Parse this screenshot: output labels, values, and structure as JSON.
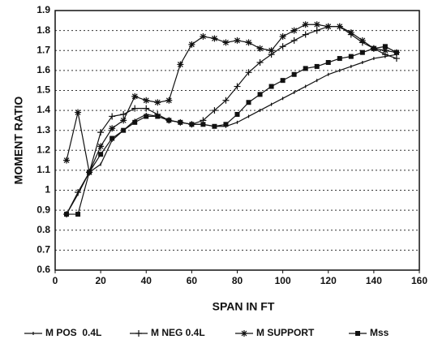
{
  "chart_data": {
    "type": "line",
    "xlabel": "SPAN IN FT",
    "ylabel": "MOMENT RATIO",
    "x": [
      5,
      10,
      15,
      20,
      25,
      30,
      35,
      40,
      45,
      50,
      55,
      60,
      65,
      70,
      75,
      80,
      85,
      90,
      95,
      100,
      105,
      110,
      115,
      120,
      125,
      130,
      135,
      140,
      145,
      150
    ],
    "series": [
      {
        "name": "M POS  0.4L",
        "color": "#111111",
        "marker": "tick",
        "values": [
          0.88,
          0.98,
          1.09,
          1.13,
          1.25,
          1.3,
          1.35,
          1.38,
          1.37,
          1.35,
          1.34,
          1.33,
          1.33,
          1.32,
          1.32,
          1.34,
          1.37,
          1.4,
          1.43,
          1.46,
          1.49,
          1.52,
          1.55,
          1.58,
          1.6,
          1.62,
          1.64,
          1.66,
          1.67,
          1.68
        ]
      },
      {
        "name": "M NEG 0.4L",
        "color": "#111111",
        "marker": "plus",
        "values": [
          0.88,
          0.99,
          1.09,
          1.29,
          1.37,
          1.38,
          1.41,
          1.41,
          1.38,
          1.35,
          1.34,
          1.33,
          1.35,
          1.4,
          1.45,
          1.52,
          1.59,
          1.64,
          1.68,
          1.72,
          1.75,
          1.78,
          1.8,
          1.82,
          1.82,
          1.78,
          1.74,
          1.71,
          1.68,
          1.66
        ]
      },
      {
        "name": "M SUPPORT",
        "color": "#111111",
        "marker": "star",
        "values": [
          1.15,
          1.39,
          1.09,
          1.22,
          1.31,
          1.35,
          1.47,
          1.45,
          1.44,
          1.45,
          1.63,
          1.73,
          1.77,
          1.76,
          1.74,
          1.75,
          1.74,
          1.71,
          1.7,
          1.77,
          1.8,
          1.83,
          1.83,
          1.82,
          1.82,
          1.79,
          1.75,
          1.71,
          1.7,
          1.69
        ]
      },
      {
        "name": "Mss",
        "color": "#111111",
        "marker": "square",
        "values": [
          0.88,
          0.88,
          1.09,
          1.18,
          1.26,
          1.3,
          1.34,
          1.37,
          1.37,
          1.35,
          1.34,
          1.33,
          1.33,
          1.32,
          1.33,
          1.38,
          1.44,
          1.48,
          1.52,
          1.55,
          1.58,
          1.61,
          1.62,
          1.64,
          1.66,
          1.67,
          1.69,
          1.71,
          1.72,
          1.69
        ]
      }
    ],
    "xlim": [
      0,
      160
    ],
    "xticks": [
      0,
      20,
      40,
      60,
      80,
      100,
      120,
      140,
      160
    ],
    "ylim": [
      0.6,
      1.9
    ],
    "yticks": [
      0.6,
      0.7,
      0.8,
      0.9,
      1,
      1.1,
      1.2,
      1.3,
      1.4,
      1.5,
      1.6,
      1.7,
      1.8,
      1.9
    ],
    "grid": true,
    "legend": "bottom"
  }
}
